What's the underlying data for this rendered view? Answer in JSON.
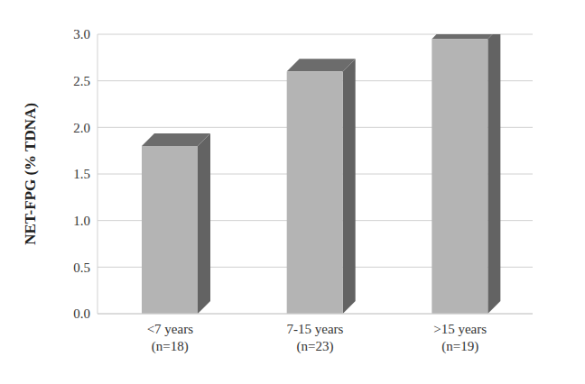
{
  "chart_data": {
    "type": "bar",
    "y_label": "NET-FPG (% TDNA)",
    "categories": [
      "<7 years\n(n=18)",
      "7-15 years\n(n=23)",
      ">15 years\n(n=19)"
    ],
    "values": [
      1.8,
      2.6,
      2.95
    ],
    "color": "#b4b4b4",
    "ylim": [
      0,
      3
    ],
    "yticks": [
      {
        "value": 0,
        "label": "0.0"
      },
      {
        "value": 0.5,
        "label": "0.5"
      },
      {
        "value": 1,
        "label": "1.0"
      },
      {
        "value": 1.5,
        "label": "1.5"
      },
      {
        "value": 2,
        "label": "2.0"
      },
      {
        "value": 2.5,
        "label": "2.5"
      },
      {
        "value": 3,
        "label": "3.0"
      }
    ],
    "grid": true
  }
}
